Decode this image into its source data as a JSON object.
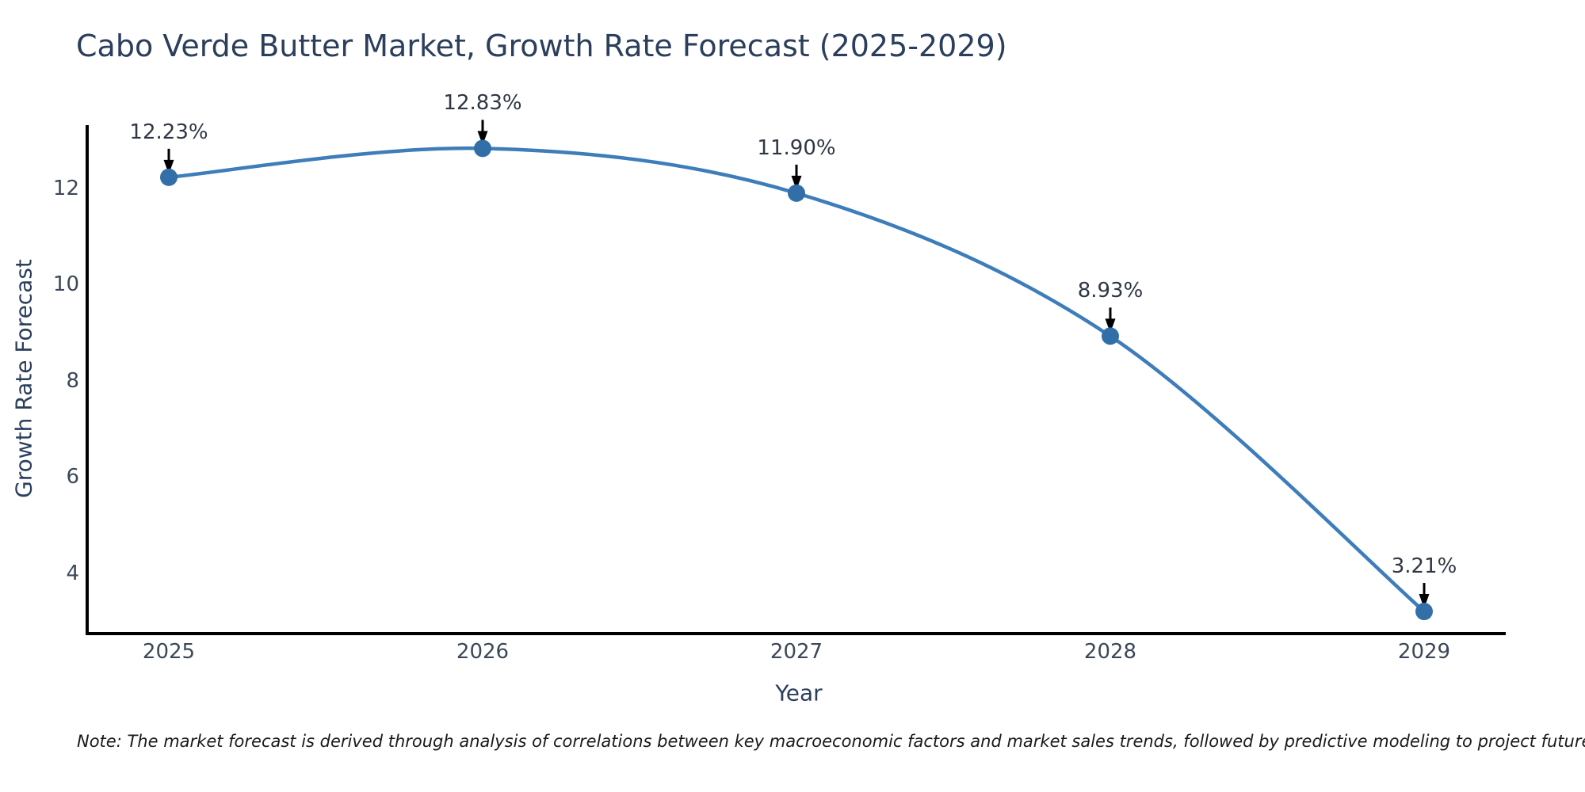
{
  "title": "Cabo Verde Butter Market, Growth Rate Forecast (2025-2029)",
  "note": "Note: The market forecast is derived through analysis of correlations between key macroeconomic factors and market sales trends, followed by predictive modeling to project future sales",
  "chart_data": {
    "type": "line",
    "title": "Cabo Verde Butter Market, Growth Rate Forecast (2025-2029)",
    "xlabel": "Year",
    "ylabel": "Growth Rate Forecast",
    "categories": [
      "2025",
      "2026",
      "2027",
      "2028",
      "2029"
    ],
    "values": [
      12.23,
      12.83,
      11.9,
      8.93,
      3.21
    ],
    "point_labels": [
      "12.23%",
      "12.83%",
      "11.90%",
      "8.93%",
      "3.21%"
    ],
    "yticks": [
      4,
      6,
      8,
      10,
      12
    ],
    "ylim": [
      2.75,
      13.28
    ],
    "grid": false,
    "legend": "none",
    "colors": {
      "line": "#3d7dba",
      "marker": "#326fa8",
      "spine": "#000000",
      "arrow": "#000000",
      "title_text": "#2b3e5c",
      "tick_text": "#3c4858",
      "annotation_text": "#2f3744",
      "note_text": "#1a1a1a",
      "background": "#ffffff"
    }
  }
}
